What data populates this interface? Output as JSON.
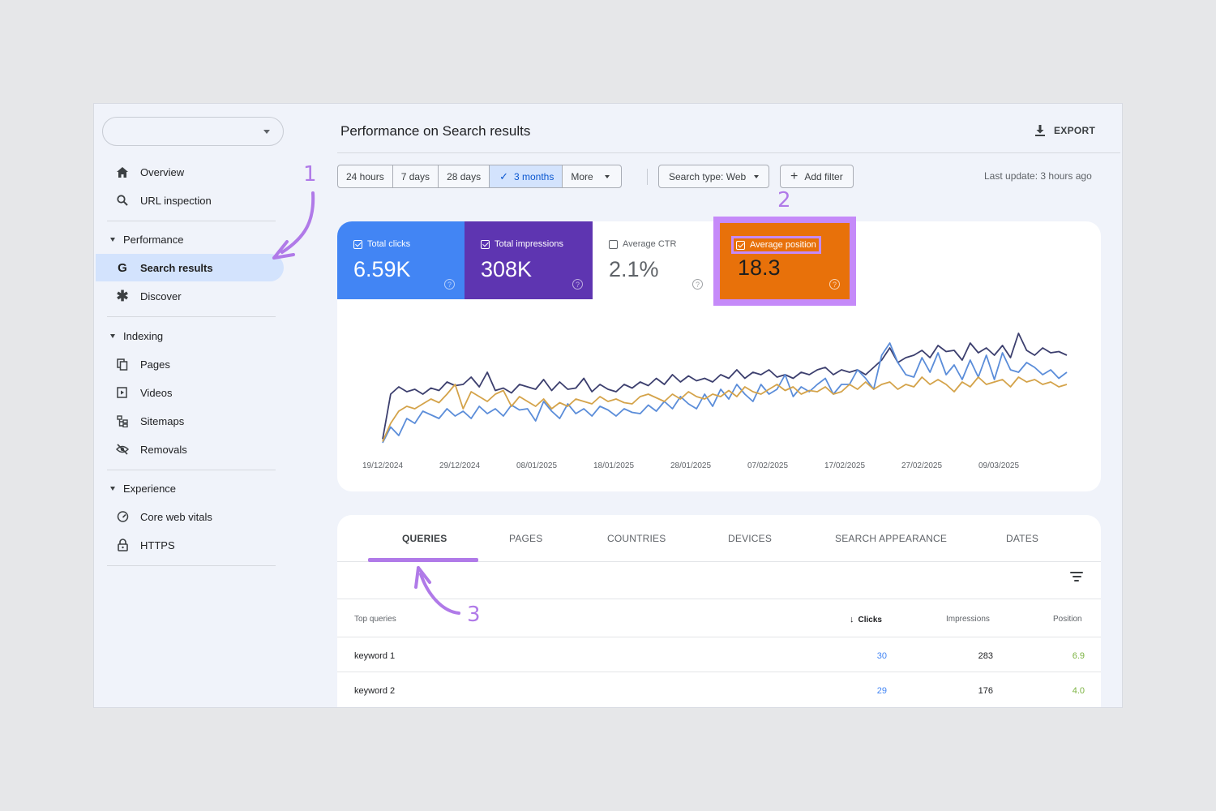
{
  "sidebar": {
    "property_value": "",
    "items": {
      "overview": "Overview",
      "url_inspection": "URL inspection",
      "search_results": "Search results",
      "discover": "Discover",
      "pages": "Pages",
      "videos": "Videos",
      "sitemaps": "Sitemaps",
      "removals": "Removals",
      "core_web_vitals": "Core web vitals",
      "https": "HTTPS"
    },
    "sections": {
      "performance": "Performance",
      "indexing": "Indexing",
      "experience": "Experience"
    }
  },
  "header": {
    "title": "Performance on Search results",
    "export_label": "EXPORT"
  },
  "filters": {
    "date_ranges": [
      "24 hours",
      "7 days",
      "28 days",
      "3 months",
      "More"
    ],
    "selected_range": "3 months",
    "search_type": "Search type: Web",
    "add_filter": "Add filter",
    "last_update": "Last update: 3 hours ago"
  },
  "metrics": {
    "clicks": {
      "label": "Total clicks",
      "value": "6.59K",
      "checked": true,
      "color": "#4285f4"
    },
    "impressions": {
      "label": "Total impressions",
      "value": "308K",
      "checked": true,
      "color": "#5e35b1"
    },
    "ctr": {
      "label": "Average CTR",
      "value": "2.1%",
      "checked": false
    },
    "position": {
      "label": "Average position",
      "value": "18.3",
      "checked": true,
      "color": "#e8710a"
    }
  },
  "chart_data": {
    "type": "line",
    "x_ticks": [
      "19/12/2024",
      "29/12/2024",
      "08/01/2025",
      "18/01/2025",
      "28/01/2025",
      "07/02/2025",
      "17/02/2025",
      "27/02/2025",
      "09/03/2025"
    ],
    "series": [
      {
        "name": "Total impressions",
        "color": "#3c3f6e",
        "values": [
          0.05,
          0.42,
          0.48,
          0.44,
          0.46,
          0.42,
          0.47,
          0.45,
          0.52,
          0.49,
          0.5,
          0.56,
          0.48,
          0.6,
          0.45,
          0.47,
          0.43,
          0.5,
          0.48,
          0.46,
          0.54,
          0.45,
          0.52,
          0.46,
          0.47,
          0.55,
          0.44,
          0.5,
          0.46,
          0.44,
          0.5,
          0.47,
          0.52,
          0.49,
          0.55,
          0.5,
          0.58,
          0.52,
          0.57,
          0.53,
          0.55,
          0.52,
          0.58,
          0.55,
          0.62,
          0.55,
          0.6,
          0.58,
          0.62,
          0.56,
          0.58,
          0.55,
          0.6,
          0.58,
          0.62,
          0.64,
          0.58,
          0.62,
          0.6,
          0.62,
          0.58,
          0.64,
          0.7,
          0.8,
          0.68,
          0.72,
          0.74,
          0.78,
          0.72,
          0.82,
          0.77,
          0.78,
          0.7,
          0.84,
          0.76,
          0.8,
          0.74,
          0.82,
          0.72,
          0.92,
          0.78,
          0.74,
          0.8,
          0.76,
          0.77,
          0.74
        ]
      },
      {
        "name": "Total clicks",
        "color": "#5b8dd9",
        "values": [
          0.02,
          0.15,
          0.08,
          0.22,
          0.18,
          0.28,
          0.25,
          0.22,
          0.3,
          0.24,
          0.28,
          0.22,
          0.32,
          0.26,
          0.3,
          0.24,
          0.33,
          0.29,
          0.3,
          0.2,
          0.36,
          0.28,
          0.22,
          0.34,
          0.26,
          0.3,
          0.24,
          0.32,
          0.29,
          0.24,
          0.3,
          0.27,
          0.26,
          0.33,
          0.28,
          0.36,
          0.3,
          0.4,
          0.34,
          0.3,
          0.42,
          0.32,
          0.46,
          0.38,
          0.5,
          0.42,
          0.36,
          0.5,
          0.42,
          0.46,
          0.58,
          0.4,
          0.48,
          0.44,
          0.5,
          0.55,
          0.42,
          0.5,
          0.5,
          0.62,
          0.55,
          0.46,
          0.74,
          0.84,
          0.68,
          0.58,
          0.56,
          0.72,
          0.6,
          0.76,
          0.58,
          0.66,
          0.54,
          0.7,
          0.56,
          0.74,
          0.54,
          0.76,
          0.62,
          0.6,
          0.68,
          0.64,
          0.58,
          0.62,
          0.55,
          0.6
        ]
      },
      {
        "name": "Average position",
        "color": "#d4a34a",
        "values": [
          0.03,
          0.18,
          0.28,
          0.32,
          0.3,
          0.34,
          0.38,
          0.35,
          0.42,
          0.5,
          0.3,
          0.44,
          0.4,
          0.36,
          0.42,
          0.45,
          0.32,
          0.4,
          0.36,
          0.32,
          0.38,
          0.3,
          0.35,
          0.32,
          0.38,
          0.36,
          0.34,
          0.4,
          0.36,
          0.38,
          0.35,
          0.34,
          0.4,
          0.42,
          0.39,
          0.36,
          0.42,
          0.38,
          0.44,
          0.4,
          0.38,
          0.42,
          0.4,
          0.45,
          0.4,
          0.48,
          0.44,
          0.42,
          0.46,
          0.5,
          0.45,
          0.48,
          0.42,
          0.45,
          0.44,
          0.48,
          0.42,
          0.44,
          0.5,
          0.46,
          0.52,
          0.46,
          0.5,
          0.52,
          0.46,
          0.5,
          0.48,
          0.56,
          0.5,
          0.54,
          0.5,
          0.44,
          0.52,
          0.48,
          0.56,
          0.5,
          0.52,
          0.54,
          0.48,
          0.56,
          0.52,
          0.54,
          0.5,
          0.52,
          0.48,
          0.5
        ]
      }
    ],
    "grid": false,
    "legend": "none"
  },
  "tabs": [
    "QUERIES",
    "PAGES",
    "COUNTRIES",
    "DEVICES",
    "SEARCH APPEARANCE",
    "DATES"
  ],
  "table": {
    "headers": {
      "query": "Top queries",
      "clicks": "Clicks",
      "impressions": "Impressions",
      "position": "Position"
    },
    "rows": [
      {
        "query": "keyword 1",
        "clicks": "30",
        "impressions": "283",
        "position": "6.9"
      },
      {
        "query": "keyword 2",
        "clicks": "29",
        "impressions": "176",
        "position": "4.0"
      }
    ]
  },
  "annotations": {
    "one": "1",
    "two": "2",
    "three": "3"
  },
  "colors": {
    "accent": "#b07ae8",
    "active_nav": "#d3e3fd",
    "selected_range": "#0b57d0"
  }
}
